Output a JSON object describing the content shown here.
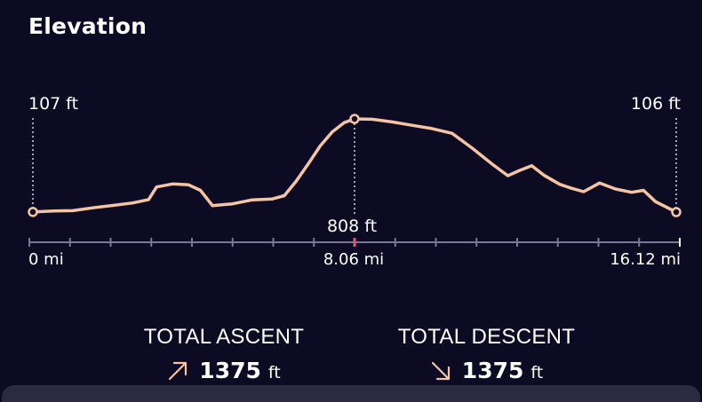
{
  "title": "Elevation",
  "elevation": {
    "start_label": "107 ft",
    "end_label": "106 ft",
    "peak_label": "808 ft"
  },
  "axis": {
    "start_label": "0 mi",
    "mid_label": "8.06 mi",
    "end_label": "16.12 mi"
  },
  "stats": {
    "ascent_label": "TOTAL ASCENT",
    "ascent_value": "1375",
    "ascent_unit": "ft",
    "descent_label": "TOTAL DESCENT",
    "descent_value": "1375",
    "descent_unit": "ft"
  },
  "colors": {
    "background": "#0d0a24",
    "profile_line": "#f5c5a3",
    "axis": "#7b7796",
    "peak_tick": "#e0577a",
    "sheet": "#2c2943"
  },
  "icons": {
    "ascent": "arrow-up-right-icon",
    "descent": "arrow-down-right-icon"
  },
  "chart_data": {
    "type": "line",
    "title": "Elevation",
    "xlabel": "",
    "ylabel": "",
    "x_unit": "mi",
    "y_unit": "ft",
    "xlim": [
      0,
      16.12
    ],
    "x_ticks": [
      "0 mi",
      "8.06 mi",
      "16.12 mi"
    ],
    "markers": [
      {
        "x": 0,
        "y": 107,
        "label": "107 ft"
      },
      {
        "x": 8.06,
        "y": 808,
        "label": "808 ft"
      },
      {
        "x": 16.12,
        "y": 106,
        "label": "106 ft"
      }
    ],
    "series": [
      {
        "values": [
          [
            0,
            107
          ],
          [
            0.5,
            115
          ],
          [
            1.0,
            117
          ],
          [
            1.5,
            138
          ],
          [
            2.0,
            156
          ],
          [
            2.5,
            175
          ],
          [
            2.9,
            200
          ],
          [
            3.1,
            295
          ],
          [
            3.5,
            318
          ],
          [
            3.9,
            311
          ],
          [
            4.2,
            270
          ],
          [
            4.5,
            155
          ],
          [
            5.0,
            168
          ],
          [
            5.5,
            198
          ],
          [
            6.0,
            205
          ],
          [
            6.3,
            230
          ],
          [
            6.6,
            340
          ],
          [
            6.9,
            470
          ],
          [
            7.2,
            605
          ],
          [
            7.5,
            710
          ],
          [
            7.8,
            780
          ],
          [
            8.06,
            808
          ],
          [
            8.5,
            805
          ],
          [
            9.0,
            785
          ],
          [
            9.5,
            760
          ],
          [
            10.0,
            735
          ],
          [
            10.5,
            700
          ],
          [
            11.0,
            590
          ],
          [
            11.5,
            470
          ],
          [
            11.9,
            380
          ],
          [
            12.2,
            420
          ],
          [
            12.5,
            455
          ],
          [
            12.8,
            385
          ],
          [
            13.2,
            315
          ],
          [
            13.5,
            285
          ],
          [
            13.8,
            260
          ],
          [
            14.2,
            325
          ],
          [
            14.6,
            280
          ],
          [
            15.0,
            255
          ],
          [
            15.3,
            270
          ],
          [
            15.6,
            185
          ],
          [
            16.12,
            106
          ]
        ]
      }
    ]
  }
}
